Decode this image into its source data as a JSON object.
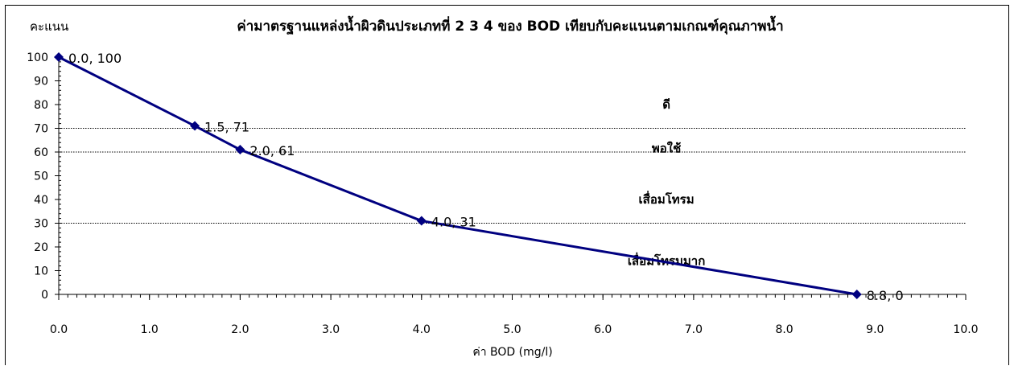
{
  "chart_data": {
    "type": "line",
    "title": "ค่ามาตรฐานแหล่งน้ำผิวดินประเภทที่ 2 3 4 ของ BOD เทียบกับคะแนนตามเกณฑ์คุณภาพน้ำ",
    "xlabel": "ค่า BOD (mg/l)",
    "ylabel": "คะแนน",
    "xlim": [
      0,
      10
    ],
    "ylim": [
      0,
      100
    ],
    "x_ticks": [
      "0.0",
      "1.0",
      "2.0",
      "3.0",
      "4.0",
      "5.0",
      "6.0",
      "7.0",
      "8.0",
      "9.0",
      "10.0"
    ],
    "y_ticks": [
      "0",
      "10",
      "20",
      "30",
      "40",
      "50",
      "60",
      "70",
      "80",
      "90",
      "100"
    ],
    "grid": false,
    "series": [
      {
        "color": "#000080",
        "x": [
          0.0,
          1.5,
          2.0,
          4.0,
          8.8
        ],
        "y": [
          100,
          71,
          61,
          31,
          0
        ],
        "point_labels": [
          "0.0, 100",
          "1.5, 71",
          "2.0, 61",
          "4.0, 31",
          "8.8, 0"
        ]
      }
    ],
    "reference_lines": [
      {
        "y": 70,
        "style": "dotted"
      },
      {
        "y": 60,
        "style": "dotted"
      },
      {
        "y": 30,
        "style": "dotted"
      }
    ],
    "zone_labels": [
      {
        "text": "ดี",
        "x": 6.7,
        "y": 80
      },
      {
        "text": "พอใช้",
        "x": 6.7,
        "y": 61.5
      },
      {
        "text": "เสื่อมโทรม",
        "x": 6.7,
        "y": 40
      },
      {
        "text": "เสื่อมโทรมมาก",
        "x": 6.7,
        "y": 14
      }
    ]
  }
}
